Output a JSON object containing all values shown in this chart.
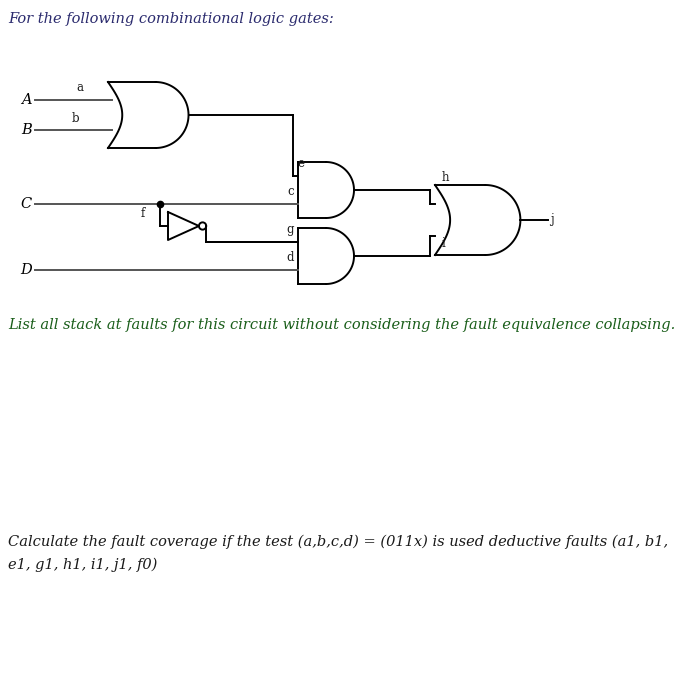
{
  "title_text": "For the following combinational logic gates:",
  "question_text": "List all stack at faults for this circuit without considering the fault equivalence collapsing.",
  "bottom_text_line1": "Calculate the fault coverage if the test (a,b,c,d) = (011x) is used deductive faults (a1, b1,",
  "bottom_text_line2": "e1, g1, h1, i1, j1, f0)",
  "title_color": "#2b2b6e",
  "question_color": "#1a5e1a",
  "bottom_color": "#1a1a1a",
  "bg_color": "#ffffff",
  "gate_color": "#000000",
  "wire_color": "#555555",
  "label_color": "#1a1a1a"
}
